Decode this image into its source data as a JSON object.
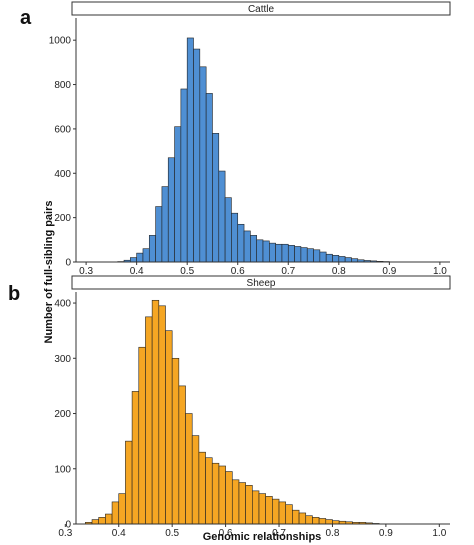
{
  "chart_data": [
    {
      "type": "bar",
      "panel": "a",
      "title": "Cattle",
      "xlabel": "",
      "ylabel": "Number of full-sibling pairs",
      "xlim": [
        0.28,
        1.02
      ],
      "ylim": [
        0,
        1100
      ],
      "xticks": [
        "0.3",
        "0.4",
        "0.5",
        "0.6",
        "0.7",
        "0.8",
        "0.9",
        "1.0"
      ],
      "yticks": [
        "0",
        "200",
        "400",
        "600",
        "800",
        "1000"
      ],
      "bin_width": 0.0125,
      "bin_start": 0.3625,
      "color": "#4f8fd3",
      "values": [
        2,
        8,
        20,
        40,
        60,
        120,
        250,
        340,
        470,
        610,
        780,
        1010,
        960,
        880,
        760,
        580,
        410,
        290,
        220,
        170,
        140,
        120,
        100,
        95,
        85,
        80,
        80,
        75,
        70,
        65,
        60,
        55,
        45,
        35,
        30,
        25,
        20,
        15,
        10,
        7,
        5,
        3,
        2
      ]
    },
    {
      "type": "bar",
      "panel": "b",
      "title": "Sheep",
      "xlabel": "Genomic relationships",
      "ylabel": "Number of full-sibling pairs",
      "xlim": [
        0.32,
        1.02
      ],
      "ylim": [
        0,
        420
      ],
      "xticks": [
        "0.3",
        "0.4",
        "0.5",
        "0.6",
        "0.7",
        "0.8",
        "0.9",
        "1.0"
      ],
      "yticks": [
        "0",
        "100",
        "200",
        "300",
        "400"
      ],
      "bin_width": 0.0125,
      "bin_start": 0.3375,
      "color": "#f5a623",
      "values": [
        3,
        8,
        12,
        18,
        40,
        55,
        150,
        240,
        320,
        375,
        405,
        395,
        350,
        300,
        250,
        200,
        160,
        130,
        120,
        110,
        105,
        95,
        80,
        75,
        70,
        60,
        55,
        50,
        45,
        40,
        35,
        25,
        20,
        15,
        12,
        10,
        8,
        6,
        5,
        4,
        3,
        3,
        2,
        1
      ]
    }
  ]
}
